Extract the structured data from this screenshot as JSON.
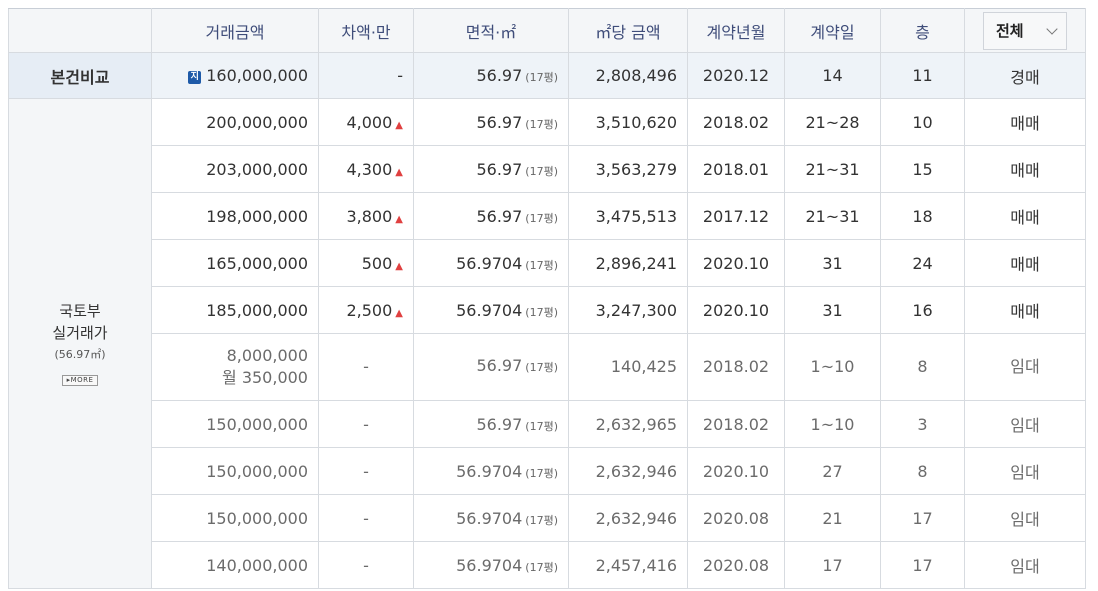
{
  "header": {
    "columns": [
      "거래금액",
      "차액·만",
      "면적·㎡",
      "㎡당 금액",
      "계약년월",
      "계약일",
      "층"
    ],
    "filter": {
      "selected": "전체"
    }
  },
  "comparison": {
    "label": "본건비교",
    "badge": "지",
    "price": "160,000,000",
    "diff": "-",
    "area": "56.97",
    "pyeong": "(17평)",
    "per_m2": "2,808,496",
    "ym": "2020.12",
    "day": "14",
    "floor": "11",
    "type": "경매"
  },
  "side": {
    "line1": "국토부",
    "line2": "실거래가",
    "line3": "(56.97㎡)",
    "more": "▸MORE"
  },
  "rows": [
    {
      "price": "200,000,000",
      "diff": "4,000",
      "up": "▲",
      "area": "56.97",
      "pyeong": "(17평)",
      "per_m2": "3,510,620",
      "ym": "2018.02",
      "day": "21~28",
      "floor": "10",
      "type": "매매"
    },
    {
      "price": "203,000,000",
      "diff": "4,300",
      "up": "▲",
      "area": "56.97",
      "pyeong": "(17평)",
      "per_m2": "3,563,279",
      "ym": "2018.01",
      "day": "21~31",
      "floor": "15",
      "type": "매매"
    },
    {
      "price": "198,000,000",
      "diff": "3,800",
      "up": "▲",
      "area": "56.97",
      "pyeong": "(17평)",
      "per_m2": "3,475,513",
      "ym": "2017.12",
      "day": "21~31",
      "floor": "18",
      "type": "매매"
    },
    {
      "price": "165,000,000",
      "diff": "500",
      "up": "▲",
      "area": "56.9704",
      "pyeong": "(17평)",
      "per_m2": "2,896,241",
      "ym": "2020.10",
      "day": "31",
      "floor": "24",
      "type": "매매"
    },
    {
      "price": "185,000,000",
      "diff": "2,500",
      "up": "▲",
      "area": "56.9704",
      "pyeong": "(17평)",
      "per_m2": "3,247,300",
      "ym": "2020.10",
      "day": "31",
      "floor": "16",
      "type": "매매"
    },
    {
      "price": "8,000,000",
      "price2": "월 350,000",
      "diff": "-",
      "area": "56.97",
      "pyeong": "(17평)",
      "per_m2": "140,425",
      "ym": "2018.02",
      "day": "1~10",
      "floor": "8",
      "type": "임대"
    },
    {
      "price": "150,000,000",
      "diff": "-",
      "area": "56.97",
      "pyeong": "(17평)",
      "per_m2": "2,632,965",
      "ym": "2018.02",
      "day": "1~10",
      "floor": "3",
      "type": "임대"
    },
    {
      "price": "150,000,000",
      "diff": "-",
      "area": "56.9704",
      "pyeong": "(17평)",
      "per_m2": "2,632,946",
      "ym": "2020.10",
      "day": "27",
      "floor": "8",
      "type": "임대"
    },
    {
      "price": "150,000,000",
      "diff": "-",
      "area": "56.9704",
      "pyeong": "(17평)",
      "per_m2": "2,632,946",
      "ym": "2020.08",
      "day": "21",
      "floor": "17",
      "type": "임대"
    },
    {
      "price": "140,000,000",
      "diff": "-",
      "area": "56.9704",
      "pyeong": "(17평)",
      "per_m2": "2,457,416",
      "ym": "2020.08",
      "day": "17",
      "floor": "17",
      "type": "임대"
    }
  ]
}
